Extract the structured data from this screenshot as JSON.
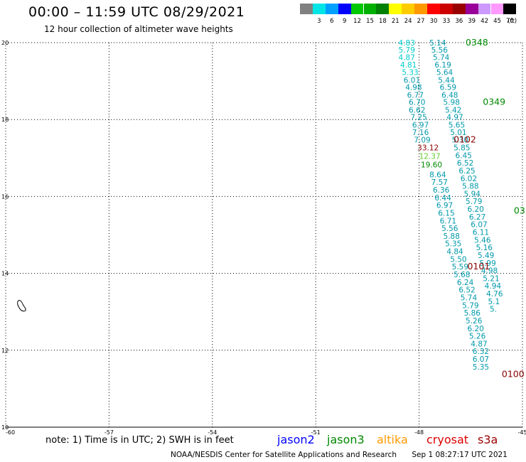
{
  "header": {
    "title": "00:00 – 11:59 UTC 08/29/2021",
    "subtitle": "12 hour collection of altimeter wave heights"
  },
  "color_scale": {
    "swatches": [
      {
        "label": "",
        "color": "#808080"
      },
      {
        "label": "3",
        "color": "#00e5e5"
      },
      {
        "label": "6",
        "color": "#00a0ff"
      },
      {
        "label": "9",
        "color": "#0000ff"
      },
      {
        "label": "12",
        "color": "#00c800"
      },
      {
        "label": "15",
        "color": "#00b000"
      },
      {
        "label": "18",
        "color": "#008000"
      },
      {
        "label": "21",
        "color": "#ffff00"
      },
      {
        "label": "24",
        "color": "#ffcc00"
      },
      {
        "label": "27",
        "color": "#ff9900"
      },
      {
        "label": "30",
        "color": "#ff0000"
      },
      {
        "label": "33",
        "color": "#cc0000"
      },
      {
        "label": "36",
        "color": "#990000"
      },
      {
        "label": "39",
        "color": "#990099"
      },
      {
        "label": "42",
        "color": "#cc99ff"
      },
      {
        "label": "45",
        "color": "#ff99ff"
      },
      {
        "label": "70",
        "color": "#000000"
      }
    ],
    "unit": "(ft)"
  },
  "map": {
    "lon_ticks": [
      "-60",
      "-57",
      "-54",
      "-51",
      "-48",
      "-45"
    ],
    "lat_ticks": [
      "20",
      "18",
      "16",
      "14",
      "12",
      "10"
    ],
    "lon_range": [
      -60,
      -45
    ],
    "lat_range": [
      10,
      20
    ],
    "grid": "dotted",
    "colors": {
      "cyan": "#00cccc",
      "teal": "#0099aa",
      "green": "#008800",
      "darkred": "#880000",
      "lightgreen": "#66cc33"
    },
    "tracks": [
      {
        "name": "track-a",
        "color": "cyan",
        "values": [
          {
            "lon": -48.6,
            "lat": 19.93,
            "v": "4.83"
          },
          {
            "lon": -48.6,
            "lat": 19.74,
            "v": "5.79"
          },
          {
            "lon": -48.6,
            "lat": 19.55,
            "v": "4.87"
          },
          {
            "lon": -48.55,
            "lat": 19.35,
            "v": "4.81"
          },
          {
            "lon": -48.5,
            "lat": 19.16,
            "v": "5.33"
          }
        ]
      },
      {
        "name": "track-b",
        "color": "teal",
        "values": [
          {
            "lon": -48.45,
            "lat": 18.96,
            "v": "6.01"
          },
          {
            "lon": -48.4,
            "lat": 18.77,
            "v": "4.98"
          },
          {
            "lon": -48.35,
            "lat": 18.57,
            "v": "6.77"
          },
          {
            "lon": -48.3,
            "lat": 18.38,
            "v": "6.70"
          },
          {
            "lon": -48.3,
            "lat": 18.18,
            "v": "6.62"
          },
          {
            "lon": -48.25,
            "lat": 17.99,
            "v": "7.25"
          },
          {
            "lon": -48.2,
            "lat": 17.79,
            "v": "6.97"
          },
          {
            "lon": -48.2,
            "lat": 17.6,
            "v": "7.16"
          },
          {
            "lon": -48.15,
            "lat": 17.4,
            "v": "7.09"
          }
        ]
      },
      {
        "name": "track-a-south",
        "color": "teal",
        "values": [
          {
            "lon": -47.7,
            "lat": 16.5,
            "v": "8.64"
          },
          {
            "lon": -47.65,
            "lat": 16.3,
            "v": "7.57"
          },
          {
            "lon": -47.6,
            "lat": 16.1,
            "v": "6.36"
          },
          {
            "lon": -47.55,
            "lat": 15.9,
            "v": "6.44"
          },
          {
            "lon": -47.5,
            "lat": 15.7,
            "v": "6.97"
          },
          {
            "lon": -47.45,
            "lat": 15.5,
            "v": "6.15"
          },
          {
            "lon": -47.4,
            "lat": 15.3,
            "v": "6.71"
          },
          {
            "lon": -47.35,
            "lat": 15.1,
            "v": "5.56"
          },
          {
            "lon": -47.3,
            "lat": 14.9,
            "v": "5.88"
          },
          {
            "lon": -47.25,
            "lat": 14.7,
            "v": "5.35"
          },
          {
            "lon": -47.2,
            "lat": 14.5,
            "v": "4.84"
          },
          {
            "lon": -47.1,
            "lat": 14.3,
            "v": "5.50"
          },
          {
            "lon": -47.05,
            "lat": 14.1,
            "v": "5.59"
          },
          {
            "lon": -47.0,
            "lat": 13.9,
            "v": "5.68"
          },
          {
            "lon": -46.9,
            "lat": 13.7,
            "v": "6.24"
          },
          {
            "lon": -46.85,
            "lat": 13.5,
            "v": "6.52"
          },
          {
            "lon": -46.8,
            "lat": 13.3,
            "v": "5.74"
          },
          {
            "lon": -46.75,
            "lat": 13.1,
            "v": "5.79"
          },
          {
            "lon": -46.7,
            "lat": 12.9,
            "v": "5.86"
          },
          {
            "lon": -46.65,
            "lat": 12.7,
            "v": "5.26"
          },
          {
            "lon": -46.6,
            "lat": 12.5,
            "v": "6.20"
          },
          {
            "lon": -46.55,
            "lat": 12.3,
            "v": "5.26"
          },
          {
            "lon": -46.5,
            "lat": 12.1,
            "v": "4.87"
          },
          {
            "lon": -46.45,
            "lat": 11.9,
            "v": "6.32"
          },
          {
            "lon": -46.45,
            "lat": 11.7,
            "v": "6.07"
          },
          {
            "lon": -46.45,
            "lat": 11.5,
            "v": "5.35"
          }
        ]
      },
      {
        "name": "track-c",
        "color": "teal",
        "values": [
          {
            "lon": -47.7,
            "lat": 19.93,
            "v": "5.14"
          },
          {
            "lon": -47.65,
            "lat": 19.74,
            "v": "5.56"
          },
          {
            "lon": -47.6,
            "lat": 19.55,
            "v": "5.74"
          },
          {
            "lon": -47.55,
            "lat": 19.35,
            "v": "6.19"
          },
          {
            "lon": -47.5,
            "lat": 19.16,
            "v": "5.64"
          },
          {
            "lon": -47.45,
            "lat": 18.96,
            "v": "5.44"
          },
          {
            "lon": -47.4,
            "lat": 18.77,
            "v": "6.59"
          },
          {
            "lon": -47.35,
            "lat": 18.57,
            "v": "6.48"
          },
          {
            "lon": -47.3,
            "lat": 18.38,
            "v": "5.98"
          },
          {
            "lon": -47.25,
            "lat": 18.18,
            "v": "5.42"
          },
          {
            "lon": -47.2,
            "lat": 17.99,
            "v": "4.97"
          },
          {
            "lon": -47.15,
            "lat": 17.79,
            "v": "5.65"
          },
          {
            "lon": -47.1,
            "lat": 17.6,
            "v": "5.01"
          },
          {
            "lon": -47.05,
            "lat": 17.4,
            "v": "5.30"
          },
          {
            "lon": -47.0,
            "lat": 17.2,
            "v": "5.85"
          },
          {
            "lon": -46.95,
            "lat": 17.0,
            "v": "6.45"
          },
          {
            "lon": -46.9,
            "lat": 16.8,
            "v": "6.52"
          },
          {
            "lon": -46.85,
            "lat": 16.6,
            "v": "6.25"
          },
          {
            "lon": -46.8,
            "lat": 16.4,
            "v": "6.02"
          },
          {
            "lon": -46.75,
            "lat": 16.2,
            "v": "5.88"
          },
          {
            "lon": -46.7,
            "lat": 16.0,
            "v": "5.94"
          },
          {
            "lon": -46.65,
            "lat": 15.8,
            "v": "5.79"
          },
          {
            "lon": -46.6,
            "lat": 15.6,
            "v": "6.20"
          },
          {
            "lon": -46.55,
            "lat": 15.4,
            "v": "6.27"
          },
          {
            "lon": -46.5,
            "lat": 15.2,
            "v": "6.07"
          },
          {
            "lon": -46.45,
            "lat": 15.0,
            "v": "6.11"
          },
          {
            "lon": -46.4,
            "lat": 14.8,
            "v": "5.46"
          },
          {
            "lon": -46.35,
            "lat": 14.6,
            "v": "5.16"
          },
          {
            "lon": -46.3,
            "lat": 14.4,
            "v": "5.49"
          },
          {
            "lon": -46.25,
            "lat": 14.2,
            "v": "5.99"
          },
          {
            "lon": -46.2,
            "lat": 14.0,
            "v": "4.98"
          },
          {
            "lon": -46.15,
            "lat": 13.8,
            "v": "5.21"
          },
          {
            "lon": -46.1,
            "lat": 13.6,
            "v": "4.94"
          },
          {
            "lon": -46.05,
            "lat": 13.4,
            "v": "4.76"
          },
          {
            "lon": -46.0,
            "lat": 13.2,
            "v": "5.1"
          },
          {
            "lon": -45.95,
            "lat": 13.0,
            "v": "5."
          }
        ]
      },
      {
        "name": "track-colored",
        "color": "mixed",
        "values": [
          {
            "lon": -48.05,
            "lat": 17.2,
            "v": "33.12",
            "c": "darkred"
          },
          {
            "lon": -48.0,
            "lat": 16.98,
            "v": "12.37",
            "c": "lightgreen"
          },
          {
            "lon": -47.95,
            "lat": 16.76,
            "v": "19.60",
            "c": "green"
          }
        ]
      }
    ],
    "time_labels": [
      {
        "lon": -46.65,
        "lat": 19.93,
        "text": "0348",
        "c": "green"
      },
      {
        "lon": -46.15,
        "lat": 18.38,
        "text": "0349",
        "c": "green"
      },
      {
        "lon": -47.0,
        "lat": 17.4,
        "text": "0102",
        "c": "darkred"
      },
      {
        "lon": -45.25,
        "lat": 15.55,
        "text": "03",
        "c": "green"
      },
      {
        "lon": -46.6,
        "lat": 14.1,
        "text": "0101",
        "c": "darkred"
      },
      {
        "lon": -45.6,
        "lat": 11.3,
        "text": "0100",
        "c": "darkred"
      }
    ]
  },
  "footer": {
    "note": "note:  1) Time is in UTC;  2) SWH is in feet",
    "satellites": [
      {
        "name": "jason2",
        "color": "#0000ff"
      },
      {
        "name": "jason3",
        "color": "#008800"
      },
      {
        "name": "altika",
        "color": "#ff9900"
      },
      {
        "name": "cryosat",
        "color": "#dd0000"
      },
      {
        "name": "s3a",
        "color": "#990000"
      }
    ],
    "credit": "NOAA/NESDIS Center for Satellite Applications and Research",
    "timestamp": "Sep  1 08:27:17 UTC 2021"
  }
}
